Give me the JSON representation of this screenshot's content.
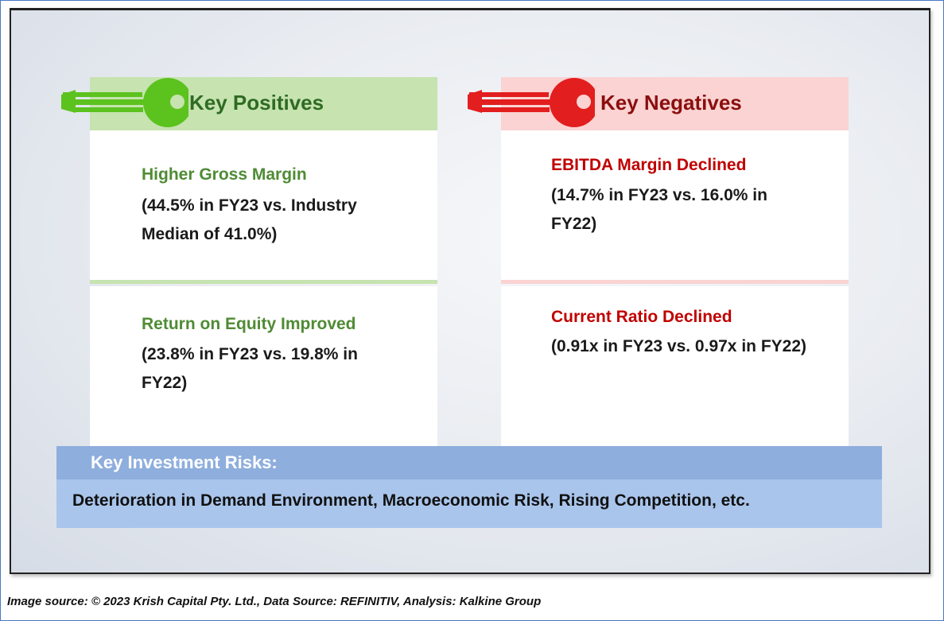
{
  "positives": {
    "header": "Key Positives",
    "items": [
      {
        "title": "Higher Gross Margin",
        "body": "(44.5% in FY23 vs. Industry Median of 41.0%)"
      },
      {
        "title": "Return on Equity Improved",
        "body": "(23.8% in FY23 vs. 19.8% in FY22)"
      }
    ],
    "accent_color": "#5cc21e",
    "header_bg": "#c6e3b0"
  },
  "negatives": {
    "header": "Key Negatives",
    "items": [
      {
        "title": "EBITDA Margin Declined",
        "body": "(14.7% in FY23 vs. 16.0% in FY22)"
      },
      {
        "title": "Current Ratio Declined",
        "body": "(0.91x in FY23 vs. 0.97x in FY22)"
      }
    ],
    "accent_color": "#e21e1e",
    "header_bg": "#fbd3d3"
  },
  "risks": {
    "title": "Key Investment Risks:",
    "text": "Deterioration in Demand Environment, Macroeconomic Risk, Rising Competition, etc."
  },
  "footer": "Image source: © 2023 Krish Capital Pty. Ltd., Data Source: REFINITIV, Analysis: Kalkine Group",
  "icons": [
    "green-key-icon",
    "red-key-icon"
  ]
}
